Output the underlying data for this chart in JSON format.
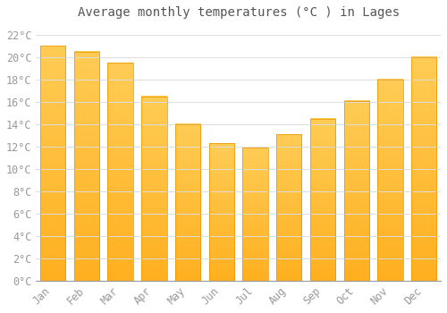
{
  "title": "Average monthly temperatures (°C ) in Lages",
  "months": [
    "Jan",
    "Feb",
    "Mar",
    "Apr",
    "May",
    "Jun",
    "Jul",
    "Aug",
    "Sep",
    "Oct",
    "Nov",
    "Dec"
  ],
  "temperatures": [
    21.0,
    20.5,
    19.5,
    16.5,
    14.0,
    12.3,
    11.9,
    13.1,
    14.5,
    16.1,
    18.0,
    20.0
  ],
  "bar_color_top": "#FFB733",
  "bar_color_bottom": "#FFA500",
  "bar_edge_color": "#E89400",
  "background_color": "#ffffff",
  "grid_color": "#dddddd",
  "ylim": [
    0,
    23
  ],
  "yticks": [
    0,
    2,
    4,
    6,
    8,
    10,
    12,
    14,
    16,
    18,
    20,
    22
  ],
  "title_fontsize": 10,
  "tick_fontsize": 8.5,
  "tick_label_color": "#999999",
  "title_color": "#555555",
  "font_family": "monospace",
  "bar_width": 0.75
}
